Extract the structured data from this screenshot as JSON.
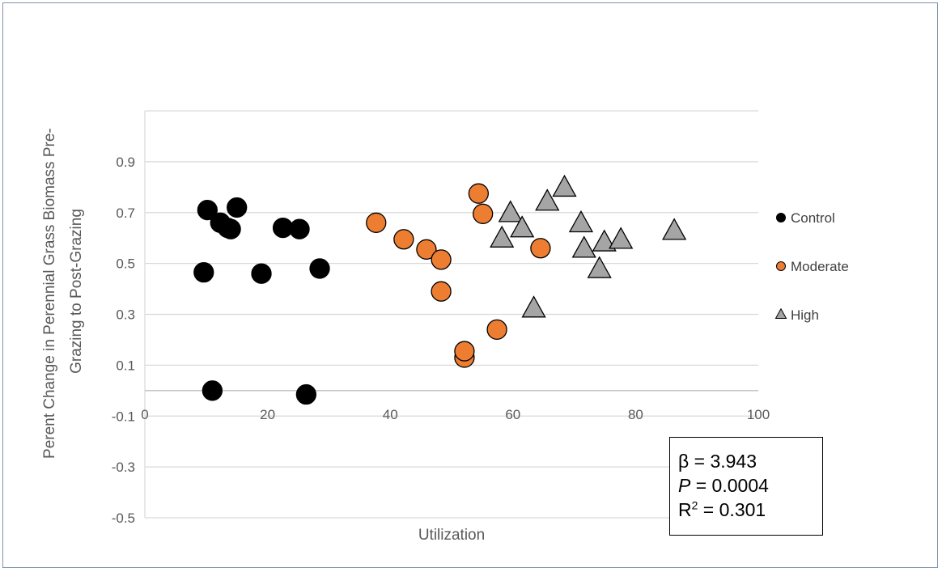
{
  "chart_data": {
    "type": "scatter",
    "xlabel": "Utilization",
    "ylabel_line1": "Perent Change in Perennial Grass Biomass Pre-",
    "ylabel_line2": "Grazing to Post-Grazing",
    "xlim": [
      0,
      100
    ],
    "ylim": [
      -0.5,
      1.1
    ],
    "x_axis_crosses_at": 0,
    "x_ticks": [
      0,
      20,
      40,
      60,
      80,
      100
    ],
    "y_ticks": [
      -0.5,
      -0.3,
      -0.1,
      0.1,
      0.3,
      0.5,
      0.7,
      0.9
    ],
    "y_tick_labels": [
      "-0.5",
      "-0.3",
      "-0.1",
      "0.1",
      "0.3",
      "0.5",
      "0.7",
      "0.9"
    ],
    "grid": "horizontal",
    "legend_position": "right",
    "series": [
      {
        "name": "Control",
        "marker": "circle",
        "color": "#000000",
        "points": [
          [
            10.2,
            0.71
          ],
          [
            12.3,
            0.66
          ],
          [
            13.5,
            0.64
          ],
          [
            14,
            0.635
          ],
          [
            15,
            0.72
          ],
          [
            9.6,
            0.465
          ],
          [
            19,
            0.46
          ],
          [
            22.5,
            0.64
          ],
          [
            25.2,
            0.635
          ],
          [
            28.5,
            0.48
          ],
          [
            11,
            0.0
          ],
          [
            26.3,
            -0.015
          ]
        ]
      },
      {
        "name": "Moderate",
        "marker": "circle",
        "color": "#ED7D31",
        "points": [
          [
            37.7,
            0.66
          ],
          [
            42.2,
            0.595
          ],
          [
            45.9,
            0.555
          ],
          [
            48.3,
            0.515
          ],
          [
            48.3,
            0.39
          ],
          [
            54.4,
            0.775
          ],
          [
            55.1,
            0.695
          ],
          [
            64.5,
            0.56
          ],
          [
            57.4,
            0.24
          ],
          [
            52.1,
            0.13
          ],
          [
            52.1,
            0.155
          ]
        ]
      },
      {
        "name": "High",
        "marker": "triangle",
        "color": "#A5A5A5",
        "points": [
          [
            68.4,
            0.795
          ],
          [
            65.6,
            0.74
          ],
          [
            59.6,
            0.695
          ],
          [
            61.5,
            0.635
          ],
          [
            58.2,
            0.595
          ],
          [
            71.1,
            0.655
          ],
          [
            71.6,
            0.555
          ],
          [
            74.9,
            0.58
          ],
          [
            77.6,
            0.59
          ],
          [
            74.1,
            0.475
          ],
          [
            86.3,
            0.625
          ],
          [
            63.4,
            0.32
          ]
        ]
      }
    ]
  },
  "stats": {
    "beta": "β = 3.943",
    "p_label": "P",
    "p_value": " = 0.0004",
    "r_label": "R",
    "r_sup": "2",
    "r_value": " = 0.301"
  }
}
